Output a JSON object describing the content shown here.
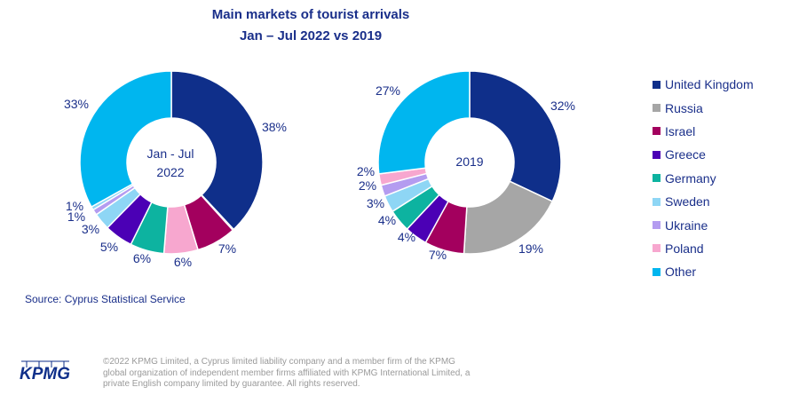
{
  "title": "Main markets of tourist arrivals",
  "subtitle": "Jan – Jul 2022 vs 2019",
  "source": "Source: Cyprus Statistical Service",
  "logo_text": "KPMG",
  "footer": "©2022 KPMG Limited, a Cyprus limited liability company and a member firm of the KPMG global organization of independent member firms affiliated with KPMG International Limited, a private English company limited by guarantee. All rights reserved.",
  "colors": {
    "title": "#1a2f8a",
    "United Kingdom": "#0f2f8a",
    "Russia": "#a6a6a6",
    "Israel": "#a3005e",
    "Greece": "#4b00b5",
    "Germany": "#0db3a0",
    "Sweden": "#8ed6f5",
    "Ukraine": "#b49cf0",
    "Poland": "#f7a7cf",
    "Other": "#00b6ef"
  },
  "legend": [
    "United Kingdom",
    "Russia",
    "Israel",
    "Greece",
    "Germany",
    "Sweden",
    "Ukraine",
    "Poland",
    "Other"
  ],
  "chart_data": [
    {
      "type": "pie",
      "title": "Jan - Jul 2022",
      "center_label": [
        "Jan - Jul",
        "2022"
      ],
      "slices": [
        {
          "name": "United Kingdom",
          "value": 38,
          "label": "38%"
        },
        {
          "name": "Russia",
          "value": 0.2,
          "label": ""
        },
        {
          "name": "Israel",
          "value": 7,
          "label": "7%"
        },
        {
          "name": "Poland",
          "value": 6,
          "label": "6%"
        },
        {
          "name": "Germany",
          "value": 6,
          "label": "6%"
        },
        {
          "name": "Greece",
          "value": 5,
          "label": "5%"
        },
        {
          "name": "Sweden",
          "value": 3,
          "label": "3%"
        },
        {
          "name": "Ukraine",
          "value": 1,
          "label": "1%"
        },
        {
          "name": "Sweden",
          "value": 0.6,
          "label": "1%"
        },
        {
          "name": "Other",
          "value": 33,
          "label": "33%"
        }
      ]
    },
    {
      "type": "pie",
      "title": "2019",
      "center_label": [
        "2019"
      ],
      "slices": [
        {
          "name": "United Kingdom",
          "value": 32,
          "label": "32%"
        },
        {
          "name": "Russia",
          "value": 19,
          "label": "19%"
        },
        {
          "name": "Israel",
          "value": 7,
          "label": "7%"
        },
        {
          "name": "Greece",
          "value": 4,
          "label": "4%"
        },
        {
          "name": "Germany",
          "value": 4,
          "label": "4%"
        },
        {
          "name": "Sweden",
          "value": 3,
          "label": "3%"
        },
        {
          "name": "Ukraine",
          "value": 2,
          "label": "2%"
        },
        {
          "name": "Poland",
          "value": 2,
          "label": "2%"
        },
        {
          "name": "Other",
          "value": 27,
          "label": "27%"
        }
      ]
    }
  ]
}
